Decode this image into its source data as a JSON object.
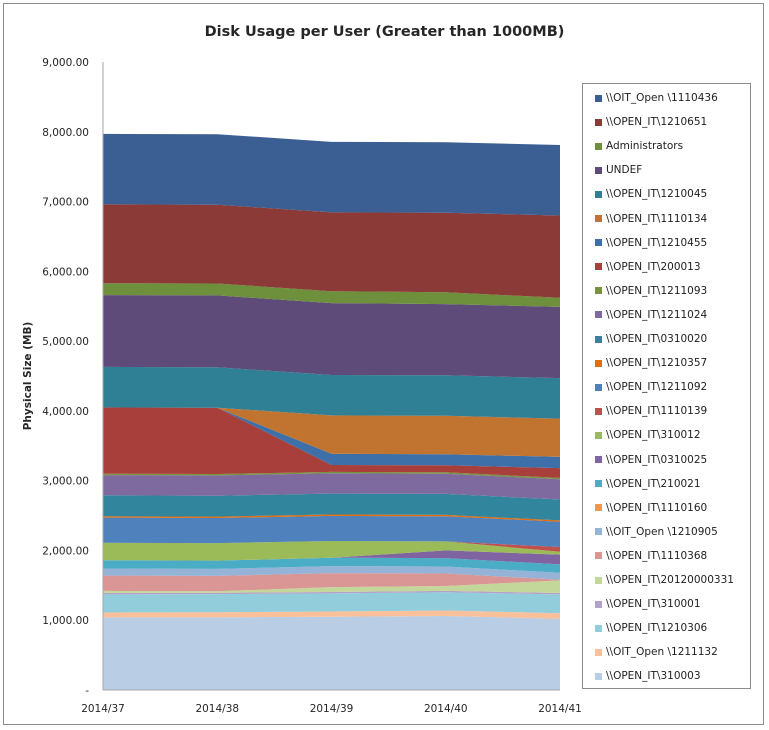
{
  "chart_data": {
    "type": "area",
    "stacked": true,
    "title": "Disk Usage per User (Greater than 1000MB)",
    "xlabel": "",
    "ylabel": "Physical Size (MB)",
    "ylim": [
      0,
      9000
    ],
    "yticks": [
      "-",
      "1,000.00",
      "2,000.00",
      "3,000.00",
      "4,000.00",
      "5,000.00",
      "6,000.00",
      "7,000.00",
      "8,000.00",
      "9,000.00"
    ],
    "categories": [
      "2014/37",
      "2014/38",
      "2014/39",
      "2014/40",
      "2014/41"
    ],
    "legend_position": "right",
    "grid": false,
    "series": [
      {
        "name": "\\\\OPEN_IT\\310003",
        "color": "#b9cde5",
        "values": [
          1040,
          1040,
          1050,
          1060,
          1020
        ]
      },
      {
        "name": "\\\\OIT_Open \\1211132",
        "color": "#fac09a",
        "values": [
          70,
          75,
          75,
          80,
          80
        ]
      },
      {
        "name": "\\\\OPEN_IT\\1210306",
        "color": "#92cddc",
        "values": [
          260,
          260,
          260,
          260,
          270
        ]
      },
      {
        "name": "\\\\OPEN_IT\\310001",
        "color": "#b3a2c7",
        "values": [
          20,
          20,
          20,
          20,
          20
        ]
      },
      {
        "name": "\\\\OPEN_IT\\20120000331",
        "color": "#c4d79b",
        "values": [
          30,
          20,
          70,
          70,
          180
        ]
      },
      {
        "name": "\\\\OPEN_IT\\1110368",
        "color": "#d99694",
        "values": [
          220,
          220,
          200,
          180,
          10
        ]
      },
      {
        "name": "\\\\OIT_Open \\1210905",
        "color": "#95b3d7",
        "values": [
          100,
          100,
          100,
          100,
          100
        ]
      },
      {
        "name": "\\\\OPEN_IT\\1110160",
        "color": "#f79646",
        "values": [
          0,
          0,
          0,
          0,
          0
        ]
      },
      {
        "name": "\\\\OPEN_IT\\210021",
        "color": "#4bacc6",
        "values": [
          120,
          120,
          120,
          120,
          120
        ]
      },
      {
        "name": "\\\\OPEN_IT\\0310025",
        "color": "#8064a2",
        "values": [
          0,
          0,
          0,
          110,
          140
        ]
      },
      {
        "name": "\\\\OPEN_IT\\310012",
        "color": "#9bbb59",
        "values": [
          250,
          250,
          240,
          130,
          40
        ]
      },
      {
        "name": "\\\\OPEN_IT\\1110139",
        "color": "#c0504d",
        "values": [
          0,
          0,
          0,
          0,
          70
        ]
      },
      {
        "name": "\\\\OPEN_IT\\1211092",
        "color": "#4f81bd",
        "values": [
          360,
          360,
          360,
          360,
          360
        ]
      },
      {
        "name": "\\\\OPEN_IT\\1210357",
        "color": "#e46c0a",
        "values": [
          20,
          20,
          20,
          20,
          20
        ]
      },
      {
        "name": "\\\\OPEN_IT\\0310020",
        "color": "#31859c",
        "values": [
          300,
          300,
          300,
          300,
          300
        ]
      },
      {
        "name": "\\\\OPEN_IT\\1211024",
        "color": "#7f6aa0",
        "values": [
          290,
          290,
          290,
          290,
          290
        ]
      },
      {
        "name": "\\\\OPEN_IT\\1211093",
        "color": "#77933c",
        "values": [
          20,
          20,
          20,
          20,
          20
        ]
      },
      {
        "name": "\\\\OPEN_IT\\200013",
        "color": "#a83f3a",
        "values": [
          950,
          950,
          100,
          100,
          140
        ]
      },
      {
        "name": "\\\\OPEN_IT\\1210455",
        "color": "#3d6fa8",
        "values": [
          0,
          0,
          160,
          160,
          160
        ]
      },
      {
        "name": "\\\\OPEN_IT\\1110134",
        "color": "#c07430",
        "values": [
          0,
          0,
          550,
          550,
          550
        ]
      },
      {
        "name": "\\\\OPEN_IT\\1210045",
        "color": "#2f7f95",
        "values": [
          580,
          580,
          580,
          580,
          580
        ]
      },
      {
        "name": "UNDEF",
        "color": "#5f4b7a",
        "values": [
          1030,
          1030,
          1030,
          1020,
          1020
        ]
      },
      {
        "name": "Administrators",
        "color": "#6e8f3c",
        "values": [
          170,
          170,
          170,
          170,
          130
        ]
      },
      {
        "name": "\\\\OPEN_IT\\1210651",
        "color": "#8b3a37",
        "values": [
          1130,
          1130,
          1130,
          1140,
          1180
        ]
      },
      {
        "name": "\\\\OIT_Open \\1110436",
        "color": "#3b5f92",
        "values": [
          1010,
          1010,
          1010,
          1010,
          1010
        ]
      }
    ]
  }
}
